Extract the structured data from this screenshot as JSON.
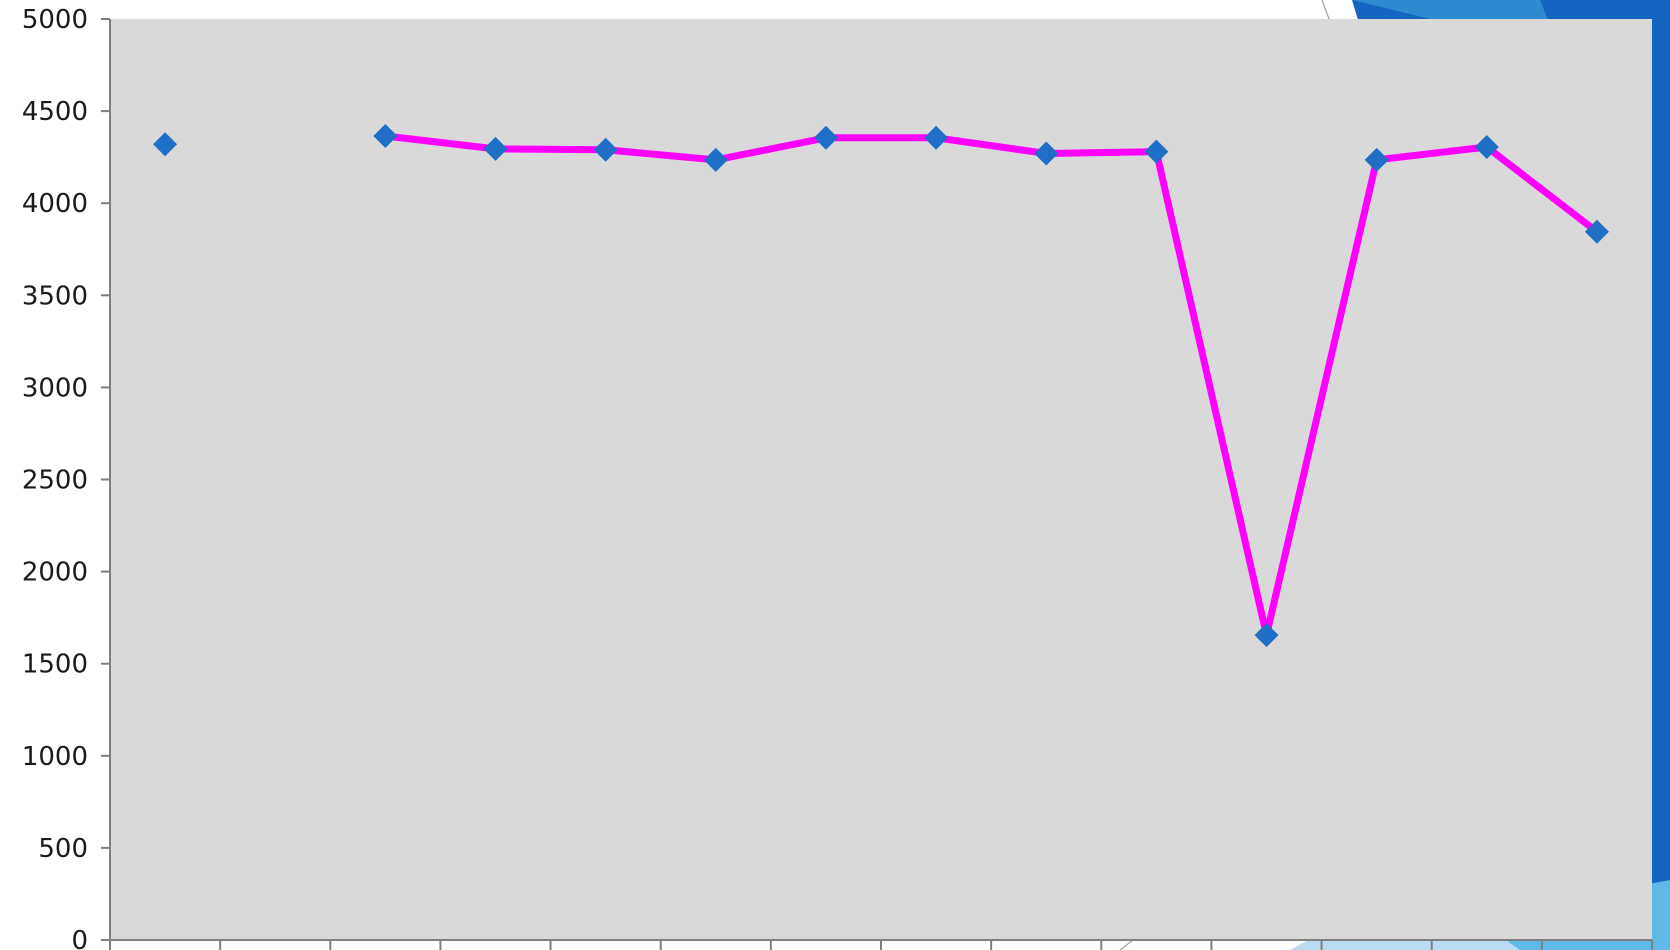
{
  "colors": {
    "plot_background": "#d9d9d9",
    "axis": "#7f7f7f",
    "line": "#ff00ff",
    "marker": "#1f6fc6",
    "slide_accent_dark": "#1565c0",
    "slide_accent_mid": "#2e8bcf",
    "slide_accent_light": "#5fb8e6",
    "slide_accent_pale": "#b9dcf2"
  },
  "chart_data": {
    "type": "line",
    "title": "",
    "xlabel": "",
    "ylabel": "",
    "x": [
      1,
      2,
      3,
      4,
      5,
      6,
      7,
      8,
      9,
      10,
      11,
      12,
      13,
      14
    ],
    "series": [
      {
        "values": [
          4320,
          null,
          4365,
          4295,
          4290,
          4235,
          4355,
          4355,
          4270,
          4280,
          1655,
          4235,
          4305,
          3845
        ],
        "marker": "diamond"
      }
    ],
    "ylim": [
      0,
      5000
    ],
    "y_ticks": [
      0,
      500,
      1000,
      1500,
      2000,
      2500,
      3000,
      3500,
      4000,
      4500,
      5000
    ],
    "y_tick_labels": [
      "0",
      "500",
      "1000",
      "1500",
      "2000",
      "2500",
      "3000",
      "3500",
      "4000",
      "4500",
      "5000"
    ],
    "x_tick_labels": [],
    "legend": "none",
    "grid": false
  }
}
